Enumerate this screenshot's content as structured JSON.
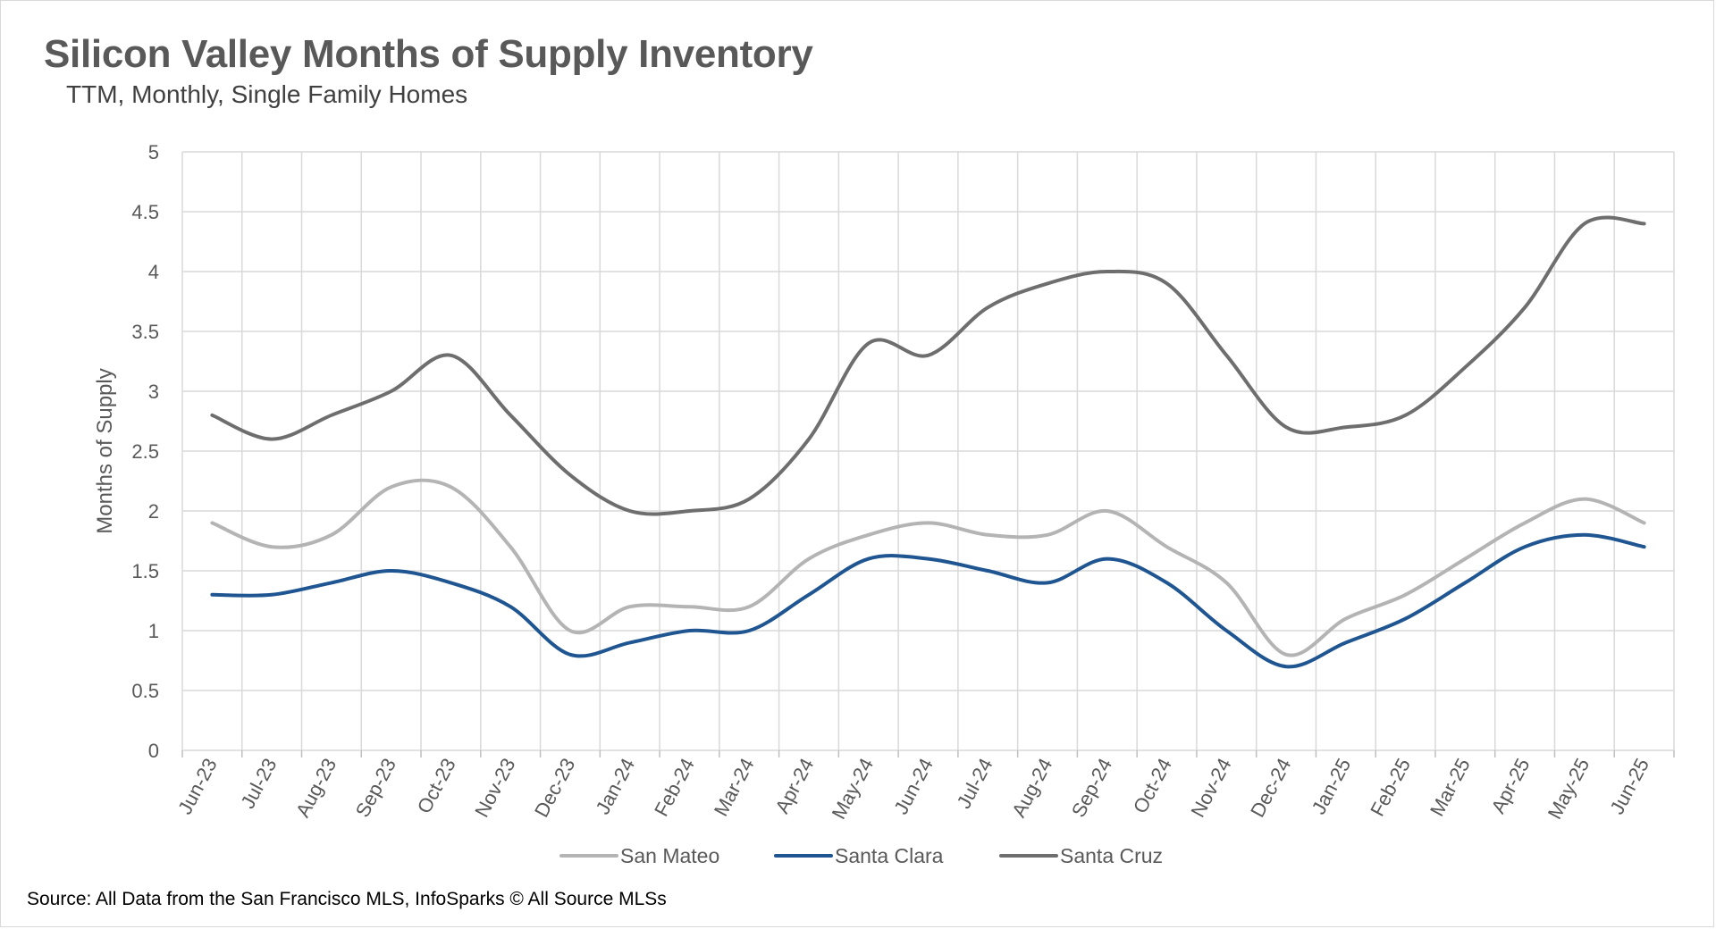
{
  "header": {
    "title": "Silicon Valley Months of Supply Inventory",
    "subtitle": "TTM, Monthly, Single Family Homes"
  },
  "footer": {
    "source": "Source: All Data from the San Francisco MLS, InfoSparks © All Source MLSs"
  },
  "chart_data": {
    "type": "line",
    "title": "Silicon Valley Months of Supply Inventory",
    "subtitle": "TTM, Monthly, Single Family Homes",
    "xlabel": "",
    "ylabel": "Months of Supply",
    "ylim": [
      0,
      5
    ],
    "yticks": [
      "0",
      "0.5",
      "1",
      "1.5",
      "2",
      "2.5",
      "3",
      "3.5",
      "4",
      "4.5",
      "5"
    ],
    "grid": true,
    "legend_position": "bottom",
    "categories": [
      "Jun-23",
      "Jul-23",
      "Aug-23",
      "Sep-23",
      "Oct-23",
      "Nov-23",
      "Dec-23",
      "Jan-24",
      "Feb-24",
      "Mar-24",
      "Apr-24",
      "May-24",
      "Jun-24",
      "Jul-24",
      "Aug-24",
      "Sep-24",
      "Oct-24",
      "Nov-24",
      "Dec-24",
      "Jan-25",
      "Feb-25",
      "Mar-25",
      "Apr-25",
      "May-25",
      "Jun-25"
    ],
    "series": [
      {
        "name": "San Mateo",
        "color": "#b4b4b4",
        "values": [
          1.9,
          1.7,
          1.8,
          2.2,
          2.2,
          1.7,
          1.0,
          1.2,
          1.2,
          1.2,
          1.6,
          1.8,
          1.9,
          1.8,
          1.8,
          2.0,
          1.7,
          1.4,
          0.8,
          1.1,
          1.3,
          1.6,
          1.9,
          2.1,
          1.9
        ]
      },
      {
        "name": "Santa Clara",
        "color": "#1f5591",
        "values": [
          1.3,
          1.3,
          1.4,
          1.5,
          1.4,
          1.2,
          0.8,
          0.9,
          1.0,
          1.0,
          1.3,
          1.6,
          1.6,
          1.5,
          1.4,
          1.6,
          1.4,
          1.0,
          0.7,
          0.9,
          1.1,
          1.4,
          1.7,
          1.8,
          1.7
        ]
      },
      {
        "name": "Santa Cruz",
        "color": "#6e6e6e",
        "values": [
          2.8,
          2.6,
          2.8,
          3.0,
          3.3,
          2.8,
          2.3,
          2.0,
          2.0,
          2.1,
          2.6,
          3.4,
          3.3,
          3.7,
          3.9,
          4.0,
          3.9,
          3.3,
          2.7,
          2.7,
          2.8,
          3.2,
          3.7,
          4.4,
          4.4
        ]
      }
    ]
  }
}
